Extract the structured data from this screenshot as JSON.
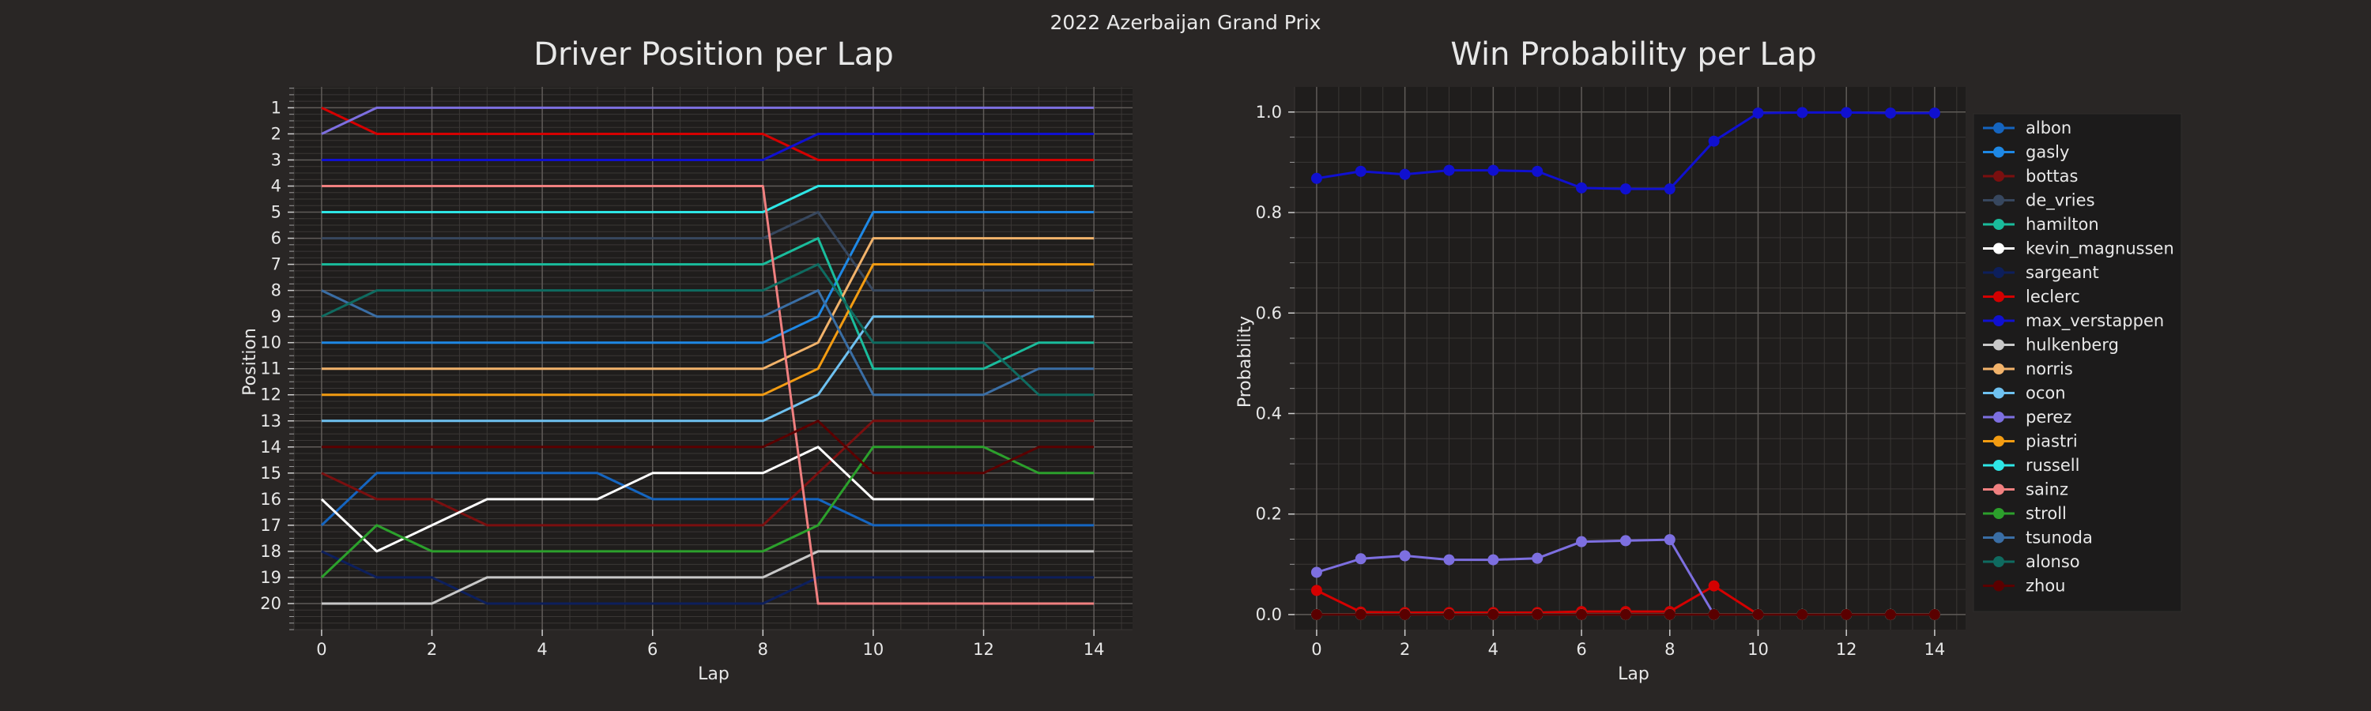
{
  "figure": {
    "suptitle": "2022 Azerbaijan Grand Prix",
    "background": "#292625",
    "axes_face": "#1f1d1c",
    "text_color": "#e8e8e8"
  },
  "chart_data": [
    {
      "type": "line",
      "title": "Driver Position per Lap",
      "xlabel": "Lap",
      "ylabel": "Position",
      "xlim": [
        -0.5,
        14.7
      ],
      "ylim": [
        21,
        0.2
      ],
      "y_inverted": true,
      "xticks": [
        0,
        2,
        4,
        6,
        8,
        10,
        12,
        14
      ],
      "yticks": [
        1,
        2,
        3,
        4,
        5,
        6,
        7,
        8,
        9,
        10,
        11,
        12,
        13,
        14,
        15,
        16,
        17,
        18,
        19,
        20
      ],
      "x": [
        0,
        1,
        2,
        3,
        4,
        5,
        6,
        7,
        8,
        9,
        10,
        11,
        12,
        13,
        14
      ],
      "grid": true,
      "series": [
        {
          "name": "albon",
          "color": "#1565c0",
          "values": [
            17,
            15,
            15,
            15,
            15,
            15,
            16,
            16,
            16,
            16,
            17,
            17,
            17,
            17,
            17
          ]
        },
        {
          "name": "gasly",
          "color": "#1e88e5",
          "values": [
            10,
            10,
            10,
            10,
            10,
            10,
            10,
            10,
            10,
            9,
            5,
            5,
            5,
            5,
            5
          ]
        },
        {
          "name": "bottas",
          "color": "#7a0f0f",
          "values": [
            15,
            16,
            16,
            17,
            17,
            17,
            17,
            17,
            17,
            15,
            13,
            13,
            13,
            13,
            13
          ]
        },
        {
          "name": "de_vries",
          "color": "#37475e",
          "values": [
            6,
            6,
            6,
            6,
            6,
            6,
            6,
            6,
            6,
            5,
            8,
            8,
            8,
            8,
            8
          ]
        },
        {
          "name": "hamilton",
          "color": "#1abc9c",
          "values": [
            7,
            7,
            7,
            7,
            7,
            7,
            7,
            7,
            7,
            6,
            11,
            11,
            11,
            10,
            10
          ]
        },
        {
          "name": "kevin_magnussen",
          "color": "#ffffff",
          "values": [
            16,
            18,
            17,
            16,
            16,
            16,
            15,
            15,
            15,
            14,
            16,
            16,
            16,
            16,
            16
          ]
        },
        {
          "name": "sargeant",
          "color": "#0d1f5c",
          "values": [
            18,
            19,
            19,
            20,
            20,
            20,
            20,
            20,
            20,
            19,
            19,
            19,
            19,
            19,
            19
          ]
        },
        {
          "name": "leclerc",
          "color": "#d40000",
          "values": [
            1,
            2,
            2,
            2,
            2,
            2,
            2,
            2,
            2,
            3,
            3,
            3,
            3,
            3,
            3
          ]
        },
        {
          "name": "max_verstappen",
          "color": "#1010d0",
          "values": [
            3,
            3,
            3,
            3,
            3,
            3,
            3,
            3,
            3,
            2,
            2,
            2,
            2,
            2,
            2
          ]
        },
        {
          "name": "hulkenberg",
          "color": "#c8c8c8",
          "values": [
            20,
            20,
            20,
            19,
            19,
            19,
            19,
            19,
            19,
            18,
            18,
            18,
            18,
            18,
            18
          ]
        },
        {
          "name": "norris",
          "color": "#f2b36b",
          "values": [
            11,
            11,
            11,
            11,
            11,
            11,
            11,
            11,
            11,
            10,
            6,
            6,
            6,
            6,
            6
          ]
        },
        {
          "name": "ocon",
          "color": "#6ec1f0",
          "values": [
            13,
            13,
            13,
            13,
            13,
            13,
            13,
            13,
            13,
            12,
            9,
            9,
            9,
            9,
            9
          ]
        },
        {
          "name": "perez",
          "color": "#7d6fe0",
          "values": [
            2,
            1,
            1,
            1,
            1,
            1,
            1,
            1,
            1,
            1,
            1,
            1,
            1,
            1,
            1
          ]
        },
        {
          "name": "piastri",
          "color": "#f39c12",
          "values": [
            12,
            12,
            12,
            12,
            12,
            12,
            12,
            12,
            12,
            11,
            7,
            7,
            7,
            7,
            7
          ]
        },
        {
          "name": "russell",
          "color": "#2ee6e6",
          "values": [
            5,
            5,
            5,
            5,
            5,
            5,
            5,
            5,
            5,
            4,
            4,
            4,
            4,
            4,
            4
          ]
        },
        {
          "name": "sainz",
          "color": "#f08080",
          "values": [
            4,
            4,
            4,
            4,
            4,
            4,
            4,
            4,
            4,
            20,
            20,
            20,
            20,
            20,
            20
          ]
        },
        {
          "name": "stroll",
          "color": "#2ca02c",
          "values": [
            19,
            17,
            18,
            18,
            18,
            18,
            18,
            18,
            18,
            17,
            14,
            14,
            14,
            15,
            15
          ]
        },
        {
          "name": "tsunoda",
          "color": "#3a6ea5",
          "values": [
            8,
            9,
            9,
            9,
            9,
            9,
            9,
            9,
            9,
            8,
            12,
            12,
            12,
            11,
            11
          ]
        },
        {
          "name": "alonso",
          "color": "#0f6b60",
          "values": [
            9,
            8,
            8,
            8,
            8,
            8,
            8,
            8,
            8,
            7,
            10,
            10,
            10,
            12,
            12
          ]
        },
        {
          "name": "zhou",
          "color": "#5a0000",
          "values": [
            14,
            14,
            14,
            14,
            14,
            14,
            14,
            14,
            14,
            13,
            15,
            15,
            15,
            14,
            14
          ]
        }
      ]
    },
    {
      "type": "line",
      "title": "Win Probability per Lap",
      "xlabel": "Lap",
      "ylabel": "Probability",
      "xlim": [
        -0.5,
        14.7
      ],
      "ylim": [
        -0.03,
        1.05
      ],
      "xticks": [
        0,
        2,
        4,
        6,
        8,
        10,
        12,
        14
      ],
      "yticks": [
        0.0,
        0.2,
        0.4,
        0.6,
        0.8,
        1.0
      ],
      "ytick_labels": [
        "0.0",
        "0.2",
        "0.4",
        "0.6",
        "0.8",
        "1.0"
      ],
      "x": [
        0,
        1,
        2,
        3,
        4,
        5,
        6,
        7,
        8,
        9,
        10,
        11,
        12,
        13,
        14
      ],
      "grid": true,
      "legend_position": "right",
      "series": [
        {
          "name": "albon",
          "color": "#1565c0",
          "values": [
            0,
            0,
            0,
            0,
            0,
            0,
            0,
            0,
            0,
            0,
            0,
            0,
            0,
            0,
            0
          ]
        },
        {
          "name": "gasly",
          "color": "#1e88e5",
          "values": [
            0,
            0,
            0,
            0,
            0,
            0,
            0,
            0,
            0,
            0,
            0,
            0,
            0,
            0,
            0
          ]
        },
        {
          "name": "bottas",
          "color": "#7a0f0f",
          "values": [
            0,
            0,
            0,
            0,
            0,
            0,
            0,
            0,
            0,
            0,
            0,
            0,
            0,
            0,
            0
          ]
        },
        {
          "name": "de_vries",
          "color": "#37475e",
          "values": [
            0,
            0,
            0,
            0,
            0,
            0,
            0,
            0,
            0,
            0,
            0,
            0,
            0,
            0,
            0
          ]
        },
        {
          "name": "hamilton",
          "color": "#1abc9c",
          "values": [
            0,
            0,
            0,
            0,
            0,
            0,
            0,
            0,
            0,
            0,
            0,
            0,
            0,
            0,
            0
          ]
        },
        {
          "name": "kevin_magnussen",
          "color": "#ffffff",
          "values": [
            0,
            0,
            0,
            0,
            0,
            0,
            0,
            0,
            0,
            0,
            0,
            0,
            0,
            0,
            0
          ]
        },
        {
          "name": "sargeant",
          "color": "#0d1f5c",
          "values": [
            0,
            0,
            0,
            0,
            0,
            0,
            0,
            0,
            0,
            0,
            0,
            0,
            0,
            0,
            0
          ]
        },
        {
          "name": "leclerc",
          "color": "#d40000",
          "values": [
            0.048,
            0.005,
            0.004,
            0.004,
            0.004,
            0.004,
            0.006,
            0.006,
            0.006,
            0.057,
            0,
            0,
            0,
            0,
            0
          ]
        },
        {
          "name": "max_verstappen",
          "color": "#1010d0",
          "values": [
            0.868,
            0.882,
            0.876,
            0.884,
            0.884,
            0.882,
            0.849,
            0.847,
            0.847,
            0.942,
            0.998,
            0.999,
            0.999,
            0.998,
            0.998
          ]
        },
        {
          "name": "hulkenberg",
          "color": "#c8c8c8",
          "values": [
            0,
            0,
            0,
            0,
            0,
            0,
            0,
            0,
            0,
            0,
            0,
            0,
            0,
            0,
            0
          ]
        },
        {
          "name": "norris",
          "color": "#f2b36b",
          "values": [
            0,
            0,
            0,
            0,
            0,
            0,
            0,
            0,
            0,
            0,
            0,
            0,
            0,
            0,
            0
          ]
        },
        {
          "name": "ocon",
          "color": "#6ec1f0",
          "values": [
            0,
            0,
            0,
            0,
            0,
            0,
            0,
            0,
            0,
            0,
            0,
            0,
            0,
            0,
            0
          ]
        },
        {
          "name": "perez",
          "color": "#7d6fe0",
          "values": [
            0.084,
            0.111,
            0.117,
            0.109,
            0.109,
            0.112,
            0.145,
            0.147,
            0.149,
            0,
            null,
            null,
            null,
            null,
            null
          ]
        },
        {
          "name": "piastri",
          "color": "#f39c12",
          "values": [
            0,
            0,
            0,
            0,
            0,
            0,
            0,
            0,
            0,
            0,
            0,
            0,
            0,
            0,
            0
          ]
        },
        {
          "name": "russell",
          "color": "#2ee6e6",
          "values": [
            0,
            0,
            0,
            0,
            0,
            0,
            0,
            0,
            0,
            0,
            0,
            0,
            0,
            0,
            0
          ]
        },
        {
          "name": "sainz",
          "color": "#f08080",
          "values": [
            0,
            0,
            0,
            0,
            0,
            0,
            0,
            0,
            0,
            0,
            0,
            0,
            0,
            0,
            0
          ]
        },
        {
          "name": "stroll",
          "color": "#2ca02c",
          "values": [
            0,
            0,
            0,
            0,
            0,
            0,
            0,
            0,
            0,
            0,
            0,
            0,
            0,
            0,
            0
          ]
        },
        {
          "name": "tsunoda",
          "color": "#3a6ea5",
          "values": [
            0,
            0,
            0,
            0,
            0,
            0,
            0,
            0,
            0,
            0,
            0,
            0,
            0,
            0,
            0
          ]
        },
        {
          "name": "alonso",
          "color": "#0f6b60",
          "values": [
            0,
            0,
            0,
            0,
            0,
            0,
            0,
            0,
            0,
            0,
            0,
            0,
            0,
            0,
            0
          ]
        },
        {
          "name": "zhou",
          "color": "#5a0000",
          "values": [
            0,
            0,
            0,
            0,
            0,
            0,
            0,
            0,
            0,
            0,
            0,
            0,
            0,
            0,
            0
          ]
        }
      ]
    }
  ]
}
